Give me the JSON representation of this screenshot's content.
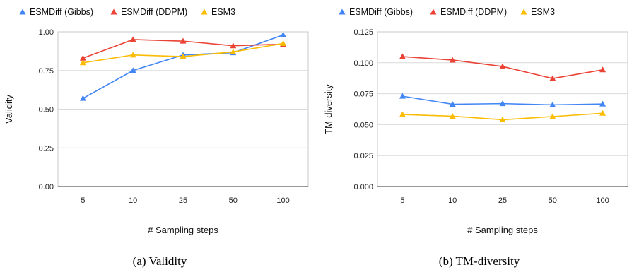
{
  "chart_data": [
    {
      "type": "line",
      "categories": [
        "5",
        "10",
        "25",
        "50",
        "100"
      ],
      "series": [
        {
          "name": "ESMDiff (Gibbs)",
          "color": "#4285F4",
          "values": [
            0.57,
            0.75,
            0.85,
            0.865,
            0.98
          ]
        },
        {
          "name": "ESMDiff (DDPM)",
          "color": "#EA4335",
          "values": [
            0.83,
            0.95,
            0.94,
            0.91,
            0.92
          ]
        },
        {
          "name": "ESM3",
          "color": "#FBBC04",
          "values": [
            0.8,
            0.85,
            0.84,
            0.87,
            0.925
          ]
        }
      ],
      "xlabel": "# Sampling steps",
      "ylabel": "Validity",
      "ylim": [
        0,
        1
      ],
      "yticks": [
        "0.00",
        "0.25",
        "0.50",
        "0.75",
        "1.00"
      ],
      "grid": true,
      "legend": "top",
      "marker": "triangle",
      "caption": "(a) Validity"
    },
    {
      "type": "line",
      "categories": [
        "5",
        "10",
        "25",
        "50",
        "100"
      ],
      "series": [
        {
          "name": "ESMDiff (Gibbs)",
          "color": "#4285F4",
          "values": [
            0.073,
            0.0665,
            0.067,
            0.066,
            0.0667
          ]
        },
        {
          "name": "ESMDiff (DDPM)",
          "color": "#EA4335",
          "values": [
            0.105,
            0.1022,
            0.097,
            0.0873,
            0.0943
          ]
        },
        {
          "name": "ESM3",
          "color": "#FBBC04",
          "values": [
            0.0582,
            0.0568,
            0.054,
            0.0565,
            0.0592
          ]
        }
      ],
      "xlabel": "# Sampling steps",
      "ylabel": "TM-diversity",
      "ylim": [
        0,
        0.125
      ],
      "yticks": [
        "0.000",
        "0.025",
        "0.050",
        "0.075",
        "0.100",
        "0.125"
      ],
      "grid": true,
      "legend": "top",
      "marker": "triangle",
      "caption": "(b) TM-diversity"
    }
  ]
}
